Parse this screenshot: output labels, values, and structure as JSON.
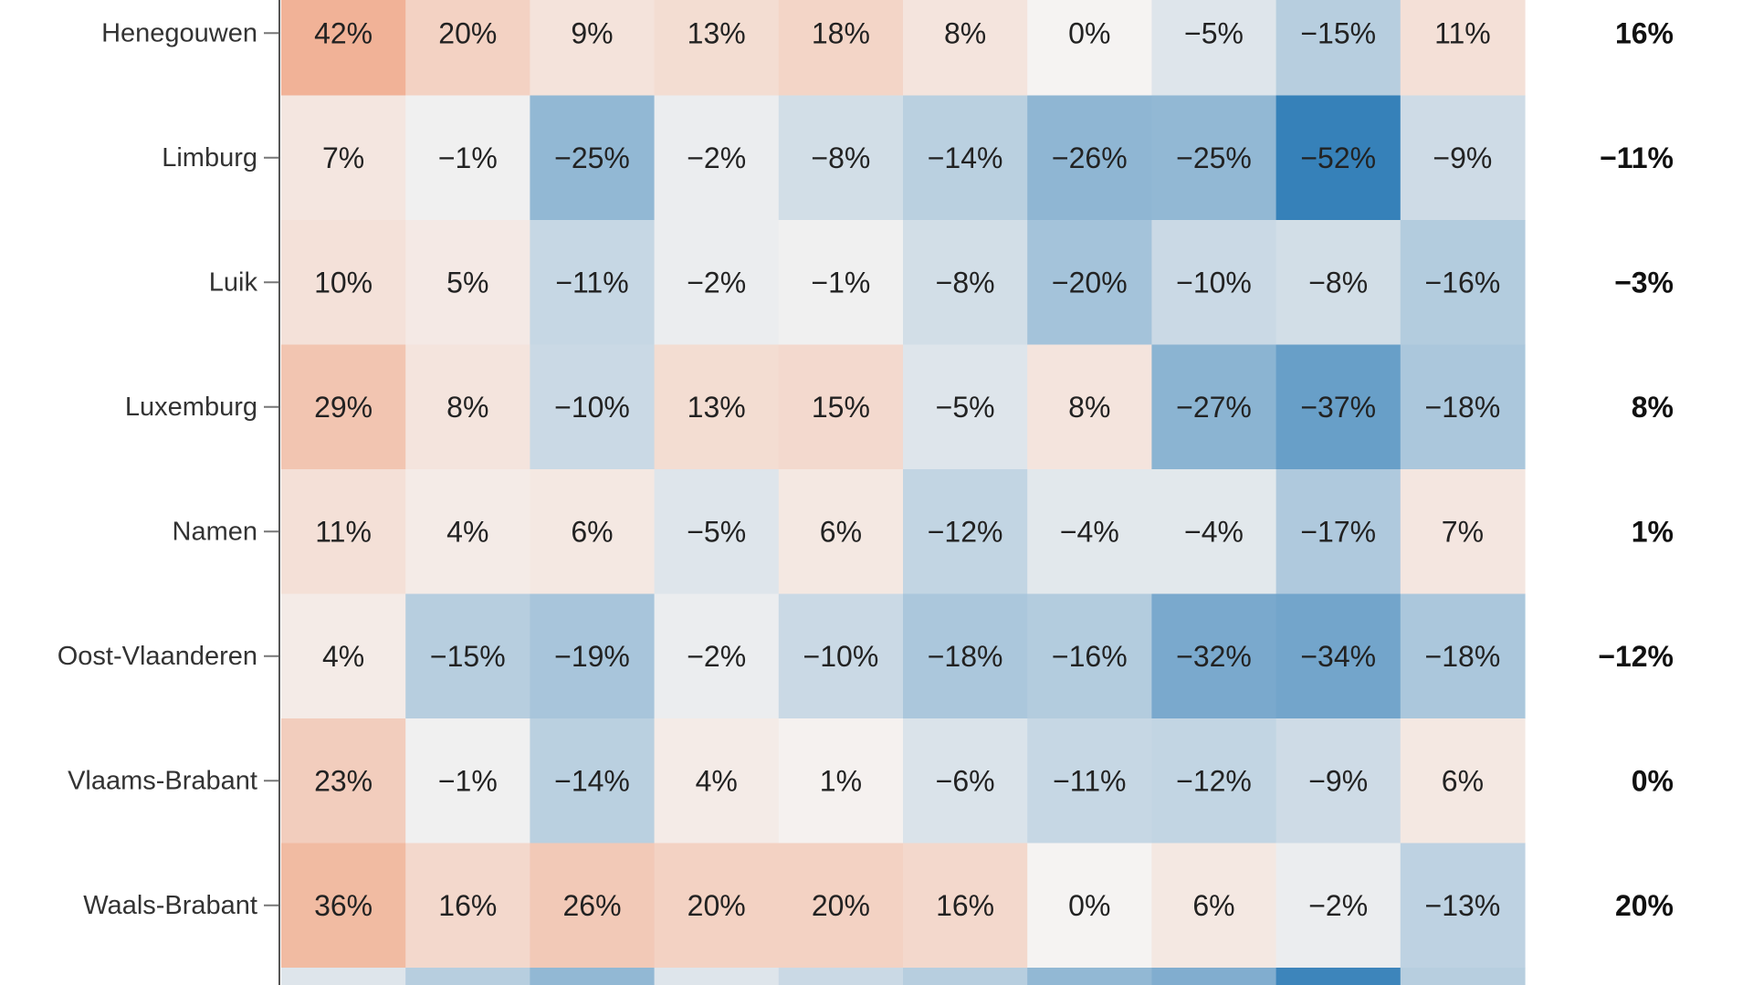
{
  "chart_data": {
    "type": "heatmap",
    "rows": [
      "Henegouwen",
      "Limburg",
      "Luik",
      "Luxemburg",
      "Namen",
      "Oost-Vlaanderen",
      "Vlaams-Brabant",
      "Waals-Brabant"
    ],
    "values": [
      [
        42,
        20,
        9,
        13,
        18,
        8,
        0,
        -5,
        -15,
        11
      ],
      [
        7,
        -1,
        -25,
        -2,
        -8,
        -14,
        -26,
        -25,
        -52,
        -9
      ],
      [
        10,
        5,
        -11,
        -2,
        -1,
        -8,
        -20,
        -10,
        -8,
        -16
      ],
      [
        29,
        8,
        -10,
        13,
        15,
        -5,
        8,
        -27,
        -37,
        -18
      ],
      [
        11,
        4,
        6,
        -5,
        6,
        -12,
        -4,
        -4,
        -17,
        7
      ],
      [
        4,
        -15,
        -19,
        -2,
        -10,
        -18,
        -16,
        -32,
        -34,
        -18
      ],
      [
        23,
        -1,
        -14,
        4,
        1,
        -6,
        -11,
        -12,
        -9,
        6
      ],
      [
        36,
        16,
        26,
        20,
        20,
        16,
        0,
        6,
        -2,
        -13
      ]
    ],
    "cell_labels": [
      [
        "42%",
        "20%",
        "9%",
        "13%",
        "18%",
        "8%",
        "0%",
        "−5%",
        "−15%",
        "11%"
      ],
      [
        "7%",
        "−1%",
        "−25%",
        "−2%",
        "−8%",
        "−14%",
        "−26%",
        "−25%",
        "−52%",
        "−9%"
      ],
      [
        "10%",
        "5%",
        "−11%",
        "−2%",
        "−1%",
        "−8%",
        "−20%",
        "−10%",
        "−8%",
        "−16%"
      ],
      [
        "29%",
        "8%",
        "−10%",
        "13%",
        "15%",
        "−5%",
        "8%",
        "−27%",
        "−37%",
        "−18%"
      ],
      [
        "11%",
        "4%",
        "6%",
        "−5%",
        "6%",
        "−12%",
        "−4%",
        "−4%",
        "−17%",
        "7%"
      ],
      [
        "4%",
        "−15%",
        "−19%",
        "−2%",
        "−10%",
        "−18%",
        "−16%",
        "−32%",
        "−34%",
        "−18%"
      ],
      [
        "23%",
        "−1%",
        "−14%",
        "4%",
        "1%",
        "−6%",
        "−11%",
        "−12%",
        "−9%",
        "6%"
      ],
      [
        "36%",
        "16%",
        "26%",
        "20%",
        "20%",
        "16%",
        "0%",
        "6%",
        "−2%",
        "−13%"
      ]
    ],
    "totals": [
      16,
      -11,
      -3,
      8,
      1,
      -12,
      0,
      20
    ],
    "total_labels": [
      "16%",
      "−11%",
      "−3%",
      "8%",
      "1%",
      "−12%",
      "0%",
      "20%"
    ],
    "color_scale": {
      "type": "diverging",
      "negative": "#2c7bb6",
      "neutral": "#f5f3f2",
      "positive": "#ef9a74",
      "domain": [
        -55,
        0,
        60
      ]
    },
    "partial_next_row": [
      -5,
      -15,
      -25,
      -5,
      -10,
      -15,
      -25,
      -30,
      -50,
      -15
    ]
  }
}
